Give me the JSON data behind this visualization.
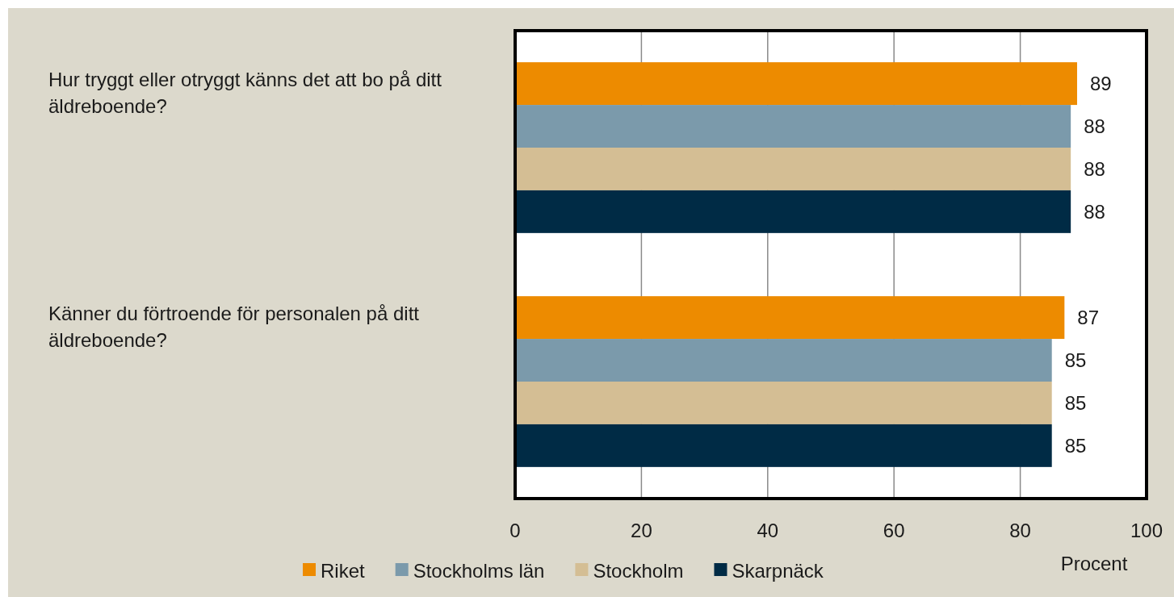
{
  "chart_data": {
    "type": "bar",
    "orientation": "horizontal",
    "xlabel": "Procent",
    "categories": [
      "Hur tryggt eller otryggt känns det att bo på ditt äldreboende?",
      "Känner du förtroende för personalen på ditt äldreboende?"
    ],
    "series": [
      {
        "name": "Riket",
        "color": "#ed8b00",
        "values": [
          89,
          87
        ]
      },
      {
        "name": "Stockholms län",
        "color": "#7b9aab",
        "values": [
          88,
          85
        ]
      },
      {
        "name": "Stockholm",
        "color": "#d4be94",
        "values": [
          88,
          85
        ]
      },
      {
        "name": "Skarpnäck",
        "color": "#002b45",
        "values": [
          88,
          85
        ]
      }
    ],
    "xlim": [
      0,
      100
    ],
    "xticks": [
      0,
      20,
      40,
      60,
      80,
      100
    ],
    "grid": "x",
    "legend": "bottom",
    "data_labels": true
  }
}
